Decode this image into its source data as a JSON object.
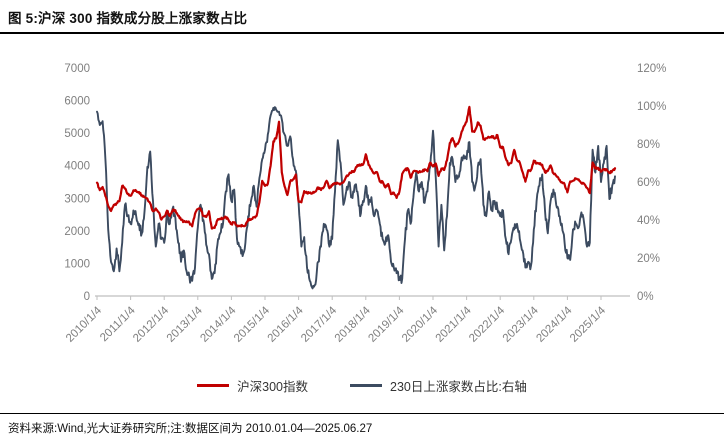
{
  "title": "图 5:沪深 300 指数成分股上涨家数占比",
  "footer": "资料来源:Wind,光大证券研究所;注:数据区间为 2010.01.04—2025.06.27",
  "colors": {
    "csi300": "#c00000",
    "ratio": "#3c4b60",
    "axis_text": "#7f7f7f",
    "axis_line": "#bfbfbf"
  },
  "chart_data": {
    "type": "line",
    "title": "沪深300指数成分股上涨家数占比",
    "x_start_year": 2010,
    "points_per_year": 12,
    "x_tick_labels": [
      "2010/1/4",
      "2011/1/4",
      "2012/1/4",
      "2013/1/4",
      "2014/1/4",
      "2015/1/4",
      "2016/1/4",
      "2017/1/4",
      "2018/1/4",
      "2019/1/4",
      "2020/1/4",
      "2021/1/4",
      "2022/1/4",
      "2023/1/4",
      "2024/1/4",
      "2025/1/4"
    ],
    "left_axis": {
      "min": 0,
      "max": 7000,
      "step": 1000,
      "tick_labels": [
        "0",
        "1000",
        "2000",
        "3000",
        "4000",
        "5000",
        "6000",
        "7000"
      ]
    },
    "right_axis": {
      "min": 0,
      "max": 120,
      "step": 20,
      "tick_labels": [
        "0%",
        "20%",
        "40%",
        "60%",
        "80%",
        "100%",
        "120%"
      ]
    },
    "legend": [
      {
        "label": "沪深300指数",
        "color": "#c00000"
      },
      {
        "label": "230日上涨家数占比:右轴",
        "color": "#3c4b60"
      }
    ],
    "series": [
      {
        "name": "沪深300指数",
        "axis": "left",
        "jitter": 35,
        "values": [
          3480,
          3251,
          3345,
          3067,
          2768,
          2610,
          2796,
          2848,
          2906,
          3381,
          3292,
          3128,
          3076,
          3245,
          3223,
          3194,
          3096,
          3044,
          2988,
          2844,
          2604,
          2685,
          2574,
          2346,
          2441,
          2619,
          2454,
          2627,
          2632,
          2461,
          2339,
          2282,
          2293,
          2254,
          2139,
          2523,
          2669,
          2666,
          2455,
          2425,
          2601,
          2073,
          2091,
          2333,
          2364,
          2374,
          2427,
          2331,
          2205,
          2264,
          2160,
          2155,
          2152,
          2165,
          2355,
          2342,
          2420,
          2459,
          2883,
          3534,
          3381,
          3443,
          3996,
          4748,
          4840,
          5350,
          3796,
          3366,
          3100,
          3518,
          3579,
          3731,
          2900,
          2878,
          3222,
          3156,
          3168,
          3154,
          3202,
          3331,
          3253,
          3340,
          3538,
          3310,
          3388,
          3452,
          3456,
          3440,
          3492,
          3666,
          3737,
          3831,
          3837,
          4015,
          4006,
          4031,
          4350,
          4023,
          3898,
          3757,
          3802,
          3511,
          3513,
          3334,
          3439,
          3129,
          3172,
          3011,
          3202,
          3748,
          3872,
          3913,
          3630,
          3825,
          3835,
          3800,
          3815,
          3887,
          3828,
          4097,
          3977,
          4069,
          3686,
          3913,
          3867,
          4164,
          4696,
          4844,
          4587,
          4698,
          4961,
          5211,
          5352,
          5807,
          5048,
          5077,
          5331,
          5224,
          4811,
          4842,
          4866,
          4909,
          4832,
          4940,
          4563,
          4573,
          4223,
          4016,
          4091,
          4485,
          4170,
          4093,
          3805,
          3508,
          3856,
          3872,
          4157,
          4069,
          4051,
          4029,
          3799,
          3842,
          4011,
          3766,
          3690,
          3573,
          3496,
          3431,
          3180,
          3516,
          3537,
          3604,
          3580,
          3462,
          3442,
          3321,
          3160,
          4100,
          3917,
          3935,
          3817,
          3890,
          3887,
          3771,
          3840,
          3920
        ]
      },
      {
        "name": "230日上涨家数占比",
        "axis": "right",
        "jitter": 2.6,
        "values": [
          97,
          90,
          92,
          72,
          35,
          18,
          13,
          25,
          13,
          28,
          48,
          42,
          38,
          45,
          42,
          38,
          33,
          45,
          68,
          76,
          50,
          26,
          38,
          30,
          28,
          44,
          38,
          46,
          41,
          28,
          18,
          24,
          13,
          10,
          8,
          15,
          36,
          48,
          40,
          27,
          22,
          9,
          12,
          27,
          33,
          38,
          55,
          64,
          50,
          56,
          30,
          26,
          21,
          28,
          42,
          50,
          58,
          47,
          62,
          72,
          77,
          85,
          95,
          99,
          98,
          97,
          93,
          85,
          79,
          84,
          72,
          66,
          49,
          26,
          31,
          15,
          8,
          4,
          6,
          18,
          26,
          38,
          35,
          26,
          30,
          55,
          82,
          70,
          48,
          55,
          60,
          52,
          58,
          55,
          42,
          50,
          58,
          48,
          52,
          42,
          45,
          38,
          30,
          28,
          32,
          18,
          15,
          12,
          10,
          9,
          30,
          45,
          38,
          52,
          65,
          55,
          60,
          49,
          55,
          68,
          87,
          62,
          26,
          48,
          24,
          42,
          70,
          72,
          60,
          63,
          70,
          74,
          72,
          81,
          60,
          57,
          68,
          72,
          48,
          42,
          55,
          45,
          50,
          46,
          42,
          45,
          30,
          22,
          30,
          35,
          38,
          30,
          24,
          15,
          18,
          16,
          35,
          50,
          58,
          64,
          45,
          33,
          50,
          56,
          48,
          42,
          38,
          28,
          20,
          19,
          35,
          38,
          36,
          44,
          38,
          26,
          28,
          77,
          65,
          79,
          60,
          70,
          79,
          51,
          58,
          63
        ]
      }
    ]
  }
}
